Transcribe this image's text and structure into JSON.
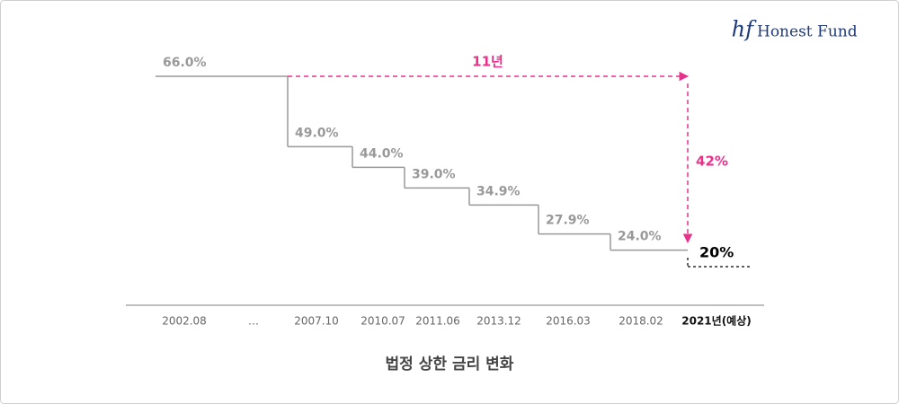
{
  "logo": {
    "mark": "hf",
    "name": "Honest Fund"
  },
  "chart_data": {
    "type": "step",
    "title": "법정 상한 금리 변화",
    "categories": [
      "2002.08",
      "…",
      "2007.10",
      "2010.07",
      "2011.06",
      "2013.12",
      "2016.03",
      "2018.02",
      "2021년(예상)"
    ],
    "values": [
      66.0,
      null,
      49.0,
      44.0,
      39.0,
      34.9,
      27.9,
      24.0,
      20
    ],
    "value_labels": [
      "66.0%",
      null,
      "49.0%",
      "44.0%",
      "39.0%",
      "34.9%",
      "27.9%",
      "24.0%",
      "20%"
    ],
    "color": "#999999",
    "forecast_color": "#000000",
    "annotation_color": "#e8318a",
    "annotations": [
      "11년",
      "42%"
    ]
  }
}
